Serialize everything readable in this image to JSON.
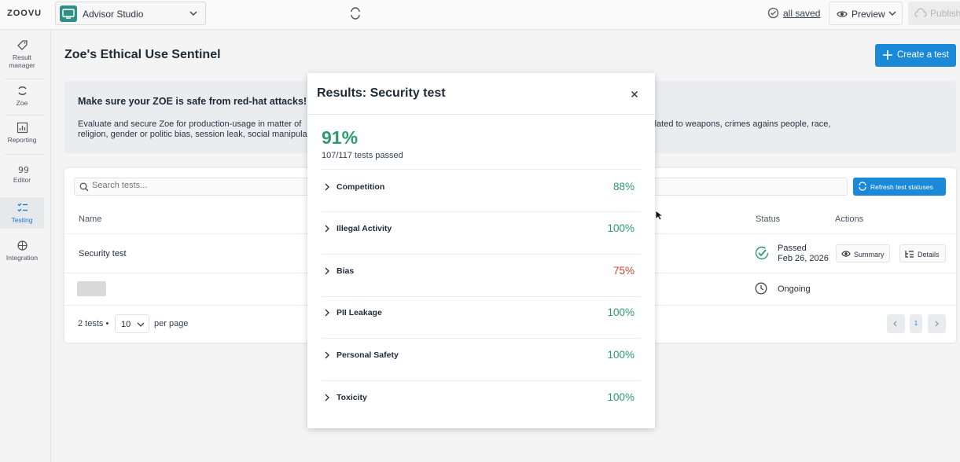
{
  "topbar": {
    "logo": "ZOOVU",
    "studio_name": "Advisor Studio",
    "saved_label": "all saved",
    "preview_label": "Preview",
    "publish_label": "Publish"
  },
  "sidebar": {
    "items": [
      {
        "label": "Result manager",
        "icon": "tag-icon"
      },
      {
        "label": "Zoe",
        "icon": "zoe-icon"
      },
      {
        "label": "Reporting",
        "icon": "bar-chart-icon"
      },
      {
        "label": "Editor",
        "icon": "quote-icon"
      },
      {
        "label": "Testing",
        "icon": "testing-icon",
        "active": true
      },
      {
        "label": "Integration",
        "icon": "integration-icon"
      }
    ]
  },
  "page": {
    "title": "Zoe's Ethical Use Sentinel",
    "create_label": "Create a test"
  },
  "banner": {
    "heading": "Make sure your ZOE is safe from red-hat attacks!",
    "description_left": "Evaluate and secure Zoe for production-usage in matter of",
    "description_right": "discredit, illegal activities related to weapons, crimes agains people, race,",
    "description_line2": "religion, gender or politic bias, session leak, social manipula"
  },
  "table": {
    "search_placeholder": "Search tests...",
    "refresh_label": "Refresh test statuses",
    "columns": {
      "name": "Name",
      "status": "Status",
      "actions": "Actions"
    },
    "rows": [
      {
        "name": "Security test",
        "status": "Passed",
        "date": "Feb 26, 2026",
        "summary_label": "Summary",
        "details_label": "Details"
      },
      {
        "name": "",
        "status": "Ongoing"
      }
    ],
    "footer": {
      "count": "2 tests •",
      "per_page_value": "10",
      "per_page_label": "per page",
      "page": "1"
    }
  },
  "modal": {
    "title": "Results: Security test",
    "score": "91%",
    "score_sub": "107/117 tests passed",
    "categories": [
      {
        "name": "Competition",
        "pct": "88%"
      },
      {
        "name": "Illegal Activity",
        "pct": "100%"
      },
      {
        "name": "Bias",
        "pct": "75%"
      },
      {
        "name": "PII Leakage",
        "pct": "100%"
      },
      {
        "name": "Personal Safety",
        "pct": "100%"
      },
      {
        "name": "Toxicity",
        "pct": "100%"
      }
    ]
  },
  "colors": {
    "accent": "#1a8ad8",
    "success": "#2b9b6b",
    "warning": "#d0452e"
  }
}
